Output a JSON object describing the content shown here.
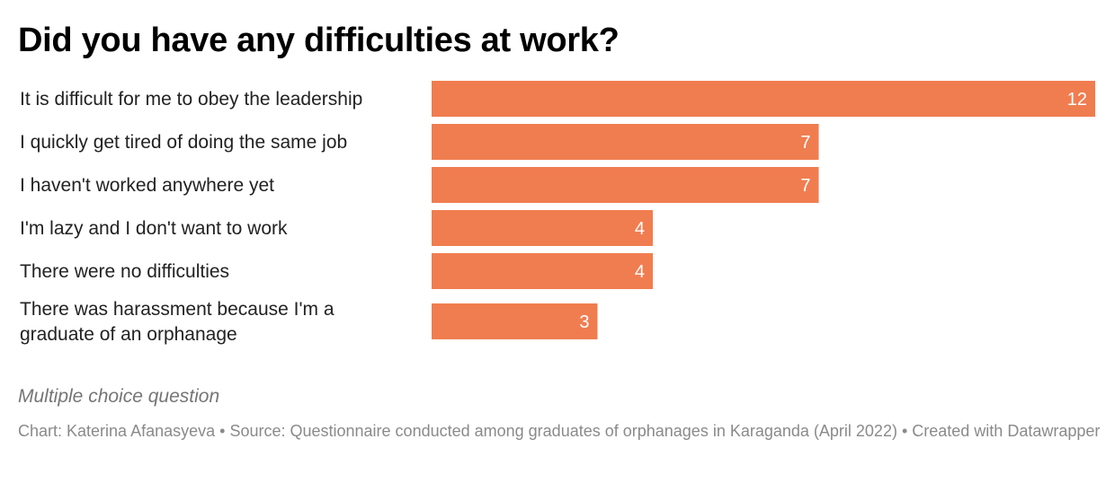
{
  "title": "Did you have any difficulties at work?",
  "notes": "Multiple choice question",
  "footer": {
    "chart_by": "Chart: Katerina Afanasyeva",
    "source": "Source: Questionnaire conducted among graduates of orphanages in Karaganda (April 2022)",
    "created_with": "Created with Datawrapper",
    "separator": " • "
  },
  "colors": {
    "bar": "#f07d50",
    "value_label": "#ffffff"
  },
  "chart_data": {
    "type": "bar",
    "orientation": "horizontal",
    "title": "Did you have any difficulties at work?",
    "categories": [
      "It is difficult for me to obey the leadership",
      "I quickly get tired of doing the same job",
      "I haven't worked anywhere yet",
      "I'm lazy and I don't want to work",
      "There were no difficulties",
      "There was harassment because I'm a graduate of an orphanage"
    ],
    "category_lines": [
      [
        "It is difficult for me to obey the leadership"
      ],
      [
        "I quickly get tired of doing the same job"
      ],
      [
        "I haven't worked anywhere yet"
      ],
      [
        "I'm lazy and I don't want to work"
      ],
      [
        "There were no difficulties"
      ],
      [
        "There was harassment because I'm a",
        "graduate of an orphanage"
      ]
    ],
    "values": [
      12,
      7,
      7,
      4,
      4,
      3
    ],
    "xlim": [
      0,
      12
    ],
    "grid": false,
    "legend": "none",
    "data_labels": "inside-end"
  }
}
